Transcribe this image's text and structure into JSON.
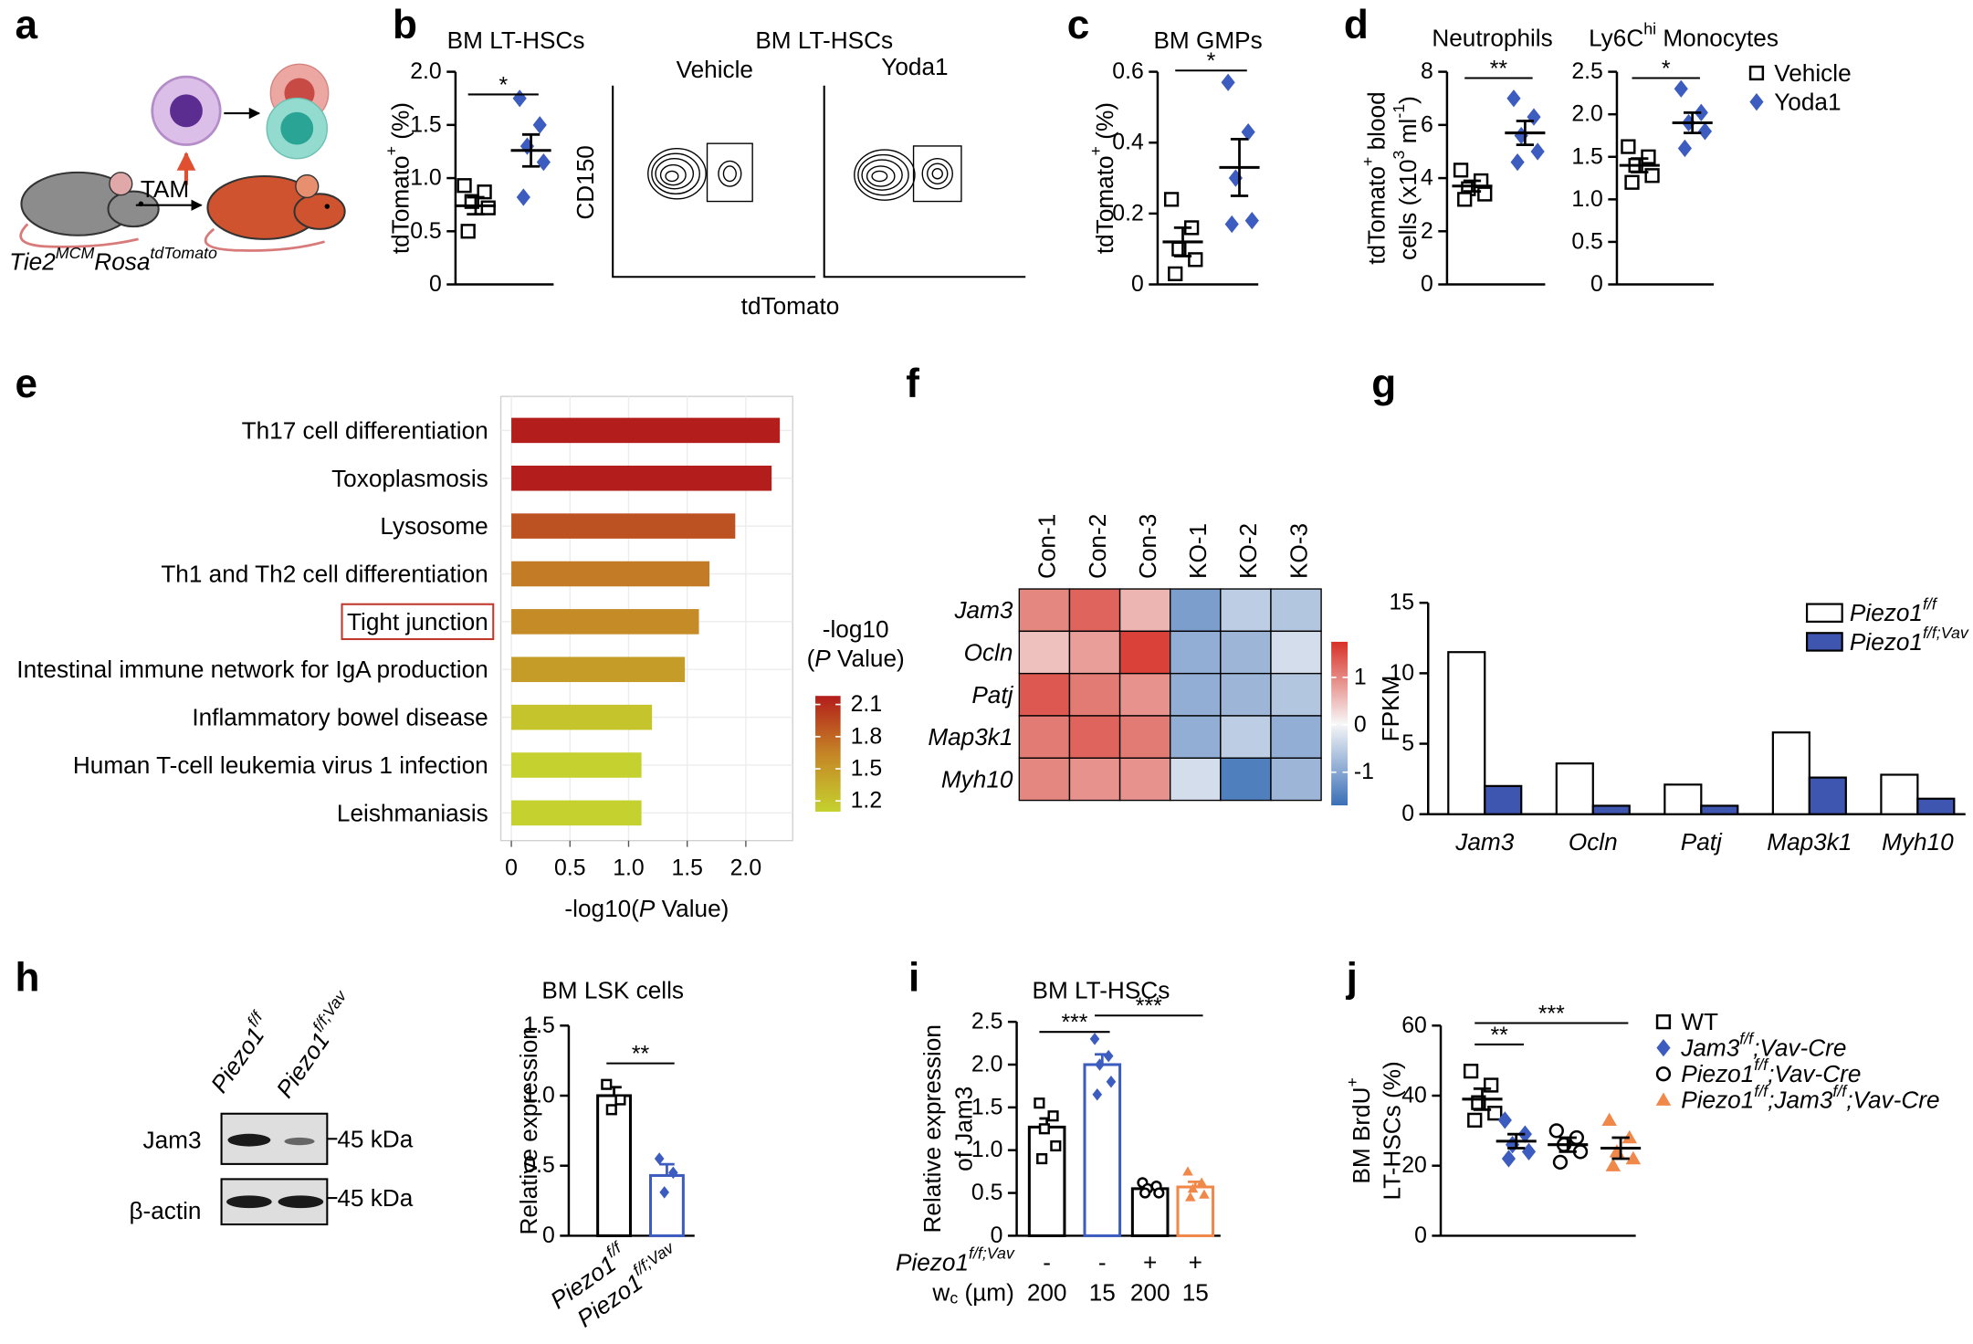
{
  "panel_labels": [
    "a",
    "b",
    "c",
    "d",
    "e",
    "f",
    "g",
    "h",
    "i",
    "j"
  ],
  "schematic": {
    "treatment": "TAM",
    "genotype": [
      "Tie2",
      {
        "sup": "MCM"
      },
      "Rosa",
      {
        "sup": "tdTomato"
      }
    ]
  },
  "flow": {
    "title": "BM LT-HSCs",
    "conditions": [
      "Vehicle",
      "Yoda1"
    ],
    "ylabel": "CD150",
    "xlabel": "tdTomato"
  },
  "blot": {
    "lanes": [
      [
        "Piezo1",
        {
          "sup": "f/f"
        }
      ],
      [
        "Piezo1",
        {
          "sup": "f/f;Vav"
        }
      ]
    ],
    "proteins": [
      "Jam3",
      "β-actin"
    ],
    "markers": [
      "45 kDa",
      "45 kDa"
    ]
  },
  "chart_data": [
    {
      "type": "dot",
      "title": "BM LT-HSCs",
      "ylabel": [
        [
          "tdTomato",
          {
            "sup": "+"
          },
          " (%)"
        ]
      ],
      "ylim": [
        0,
        2
      ],
      "yticks": [
        0,
        0.5,
        {
          "value": 1,
          "label": "1.0"
        },
        1.5,
        {
          "value": 2,
          "label": "2.0"
        }
      ],
      "series": [
        {
          "color": "#000000",
          "marker": "square",
          "values": [
            0.93,
            0.87,
            0.78,
            0.72,
            0.5
          ],
          "mean": 0.74,
          "sem": 0.08
        },
        {
          "color": "#3d5cbf",
          "marker": "diamond",
          "values": [
            1.75,
            1.5,
            1.3,
            1.15,
            0.82
          ],
          "mean": 1.26,
          "sem": 0.15
        }
      ],
      "annotations": [
        {
          "text": "*",
          "from": 0,
          "to": 1
        }
      ]
    },
    {
      "type": "dot",
      "title": "BM GMPs",
      "ylabel": [
        [
          "tdTomato",
          {
            "sup": "+"
          },
          " (%)"
        ]
      ],
      "ylim": [
        0,
        0.6
      ],
      "yticks": [
        0,
        0.2,
        0.4,
        0.6
      ],
      "series": [
        {
          "color": "#000000",
          "marker": "square",
          "values": [
            0.24,
            0.16,
            0.1,
            0.07,
            0.03
          ],
          "mean": 0.12,
          "sem": 0.04
        },
        {
          "color": "#3d5cbf",
          "marker": "diamond",
          "values": [
            0.57,
            0.43,
            0.3,
            0.18,
            0.17
          ],
          "mean": 0.33,
          "sem": 0.08
        }
      ],
      "annotations": [
        {
          "text": "*",
          "from": 0,
          "to": 1
        }
      ]
    },
    {
      "type": "dot",
      "title": "Neutrophils",
      "ylabel": [
        [
          "tdTomato",
          {
            "sup": "+"
          },
          " blood"
        ],
        [
          "cells (x10",
          {
            "sup": "3"
          },
          " ml",
          {
            "sup": "-1"
          },
          ")"
        ]
      ],
      "ylim": [
        0,
        8
      ],
      "yticks": [
        0,
        2,
        4,
        6,
        8
      ],
      "series": [
        {
          "color": "#000000",
          "marker": "square",
          "values": [
            4.3,
            3.9,
            3.6,
            3.4,
            3.2
          ],
          "mean": 3.7,
          "sem": 0.2
        },
        {
          "color": "#3d5cbf",
          "marker": "diamond",
          "values": [
            7.0,
            6.3,
            5.6,
            5.0,
            4.6
          ],
          "mean": 5.7,
          "sem": 0.45
        }
      ],
      "annotations": [
        {
          "text": "**",
          "from": 0,
          "to": 1
        }
      ]
    },
    {
      "type": "dot",
      "title": [
        "Ly6C",
        {
          "sup": "hi"
        },
        " Monocytes"
      ],
      "ylabel": [],
      "ylim": [
        0,
        2.5
      ],
      "yticks": [
        0,
        0.5,
        {
          "value": 1,
          "label": "1.0"
        },
        1.5,
        {
          "value": 2,
          "label": "2.0"
        },
        2.5
      ],
      "series": [
        {
          "name": "Vehicle",
          "color": "#000000",
          "marker": "square",
          "values": [
            1.62,
            1.5,
            1.4,
            1.28,
            1.2
          ],
          "mean": 1.4,
          "sem": 0.08
        },
        {
          "name": "Yoda1",
          "color": "#3d5cbf",
          "marker": "diamond",
          "values": [
            2.3,
            2.02,
            1.9,
            1.8,
            1.6
          ],
          "mean": 1.9,
          "sem": 0.12
        }
      ],
      "annotations": [
        {
          "text": "*",
          "from": 0,
          "to": 1
        }
      ]
    },
    {
      "type": "barh",
      "categories": [
        "Th17 cell differentiation",
        "Toxoplasmosis",
        "Lysosome",
        "Th1 and Th2 cell differentiation",
        "Tight junction",
        "Intestinal immune network for IgA production",
        "Inflammatory bowel disease",
        "Human T-cell leukemia virus 1 infection",
        "Leishmaniasis"
      ],
      "values": [
        2.29,
        2.22,
        1.91,
        1.69,
        1.6,
        1.48,
        1.2,
        1.11,
        1.11
      ],
      "xlim": [
        -0.09,
        2.4
      ],
      "xticks": [
        0,
        0.5,
        {
          "value": 1,
          "label": "1.0"
        },
        1.5,
        {
          "value": 2,
          "label": "2.0"
        }
      ],
      "xlabel": [
        "-log10(",
        {
          "i": "P"
        },
        " Value)"
      ],
      "grid": true,
      "colorbar": {
        "title": [
          [
            "-log10"
          ],
          [
            "(",
            {
              "i": "P"
            },
            " Value)"
          ]
        ],
        "lim": [
          1.1,
          2.18
        ],
        "ticks": [
          2.1,
          1.8,
          1.5,
          1.2
        ],
        "colors": [
          "#c5d22e",
          "#c58526",
          "#b31d1b"
        ]
      }
    },
    {
      "type": "heatmap",
      "columns": [
        "Con-1",
        "Con-2",
        "Con-3",
        "KO-1",
        "KO-2",
        "KO-3"
      ],
      "rows": [
        "Jam3",
        "Ocln",
        "Patj",
        "Map3k1",
        "Myh10"
      ],
      "values": [
        [
          1.0,
          1.3,
          0.6,
          -1.1,
          -0.5,
          -0.6
        ],
        [
          0.5,
          0.8,
          1.6,
          -0.9,
          -0.8,
          -0.3
        ],
        [
          1.4,
          1.1,
          0.9,
          -0.9,
          -0.8,
          -0.6
        ],
        [
          1.1,
          1.3,
          1.1,
          -0.9,
          -0.5,
          -0.9
        ],
        [
          1.0,
          0.9,
          0.9,
          -0.3,
          -1.5,
          -0.8
        ]
      ],
      "colorbar": {
        "lim": [
          -1.7,
          1.75
        ],
        "ticks": [
          1,
          0,
          -1
        ],
        "colors": [
          "#3a6fb7",
          "#f7f7f7",
          "#d73027"
        ]
      }
    },
    {
      "type": "grouped_bar",
      "categories": [
        "Jam3",
        "Ocln",
        "Patj",
        "Map3k1",
        "Myh10"
      ],
      "ylabel": [
        [
          "FPKM"
        ]
      ],
      "ylim": [
        0,
        15
      ],
      "yticks": [
        0,
        5,
        10,
        15
      ],
      "series": [
        {
          "name": [
            "Piezo1",
            {
              "sup": "f/f"
            }
          ],
          "color": "#ffffff",
          "values": [
            11.5,
            3.6,
            2.1,
            5.8,
            2.8
          ]
        },
        {
          "name": [
            "Piezo1",
            {
              "sup": "f/f;Vav"
            }
          ],
          "color": "#3f56b0",
          "values": [
            2.0,
            0.6,
            0.6,
            2.6,
            1.1
          ]
        }
      ]
    },
    {
      "type": "bar",
      "title": "BM LSK cells",
      "ylabel": [
        [
          "Relative expression"
        ]
      ],
      "categories": [
        [
          "Piezo1",
          {
            "sup": "f/f"
          }
        ],
        [
          "Piezo1",
          {
            "sup": "f/f;Vav"
          }
        ]
      ],
      "values": [
        1.0,
        0.43
      ],
      "errors": [
        0.06,
        0.08
      ],
      "points": [
        [
          1.08,
          0.97,
          0.9
        ],
        [
          0.55,
          0.45,
          0.31
        ]
      ],
      "colors": [
        "#000000",
        "#3d5cbf"
      ],
      "markers": [
        "square",
        "diamond"
      ],
      "ylim": [
        0,
        1.5
      ],
      "yticks": [
        0,
        0.5,
        {
          "value": 1,
          "label": "1.0"
        },
        1.5
      ],
      "annotations": [
        {
          "text": "**",
          "from": 0,
          "to": 1
        }
      ]
    },
    {
      "type": "bar",
      "title": "BM LT-HSCs",
      "ylabel": [
        [
          "Relative expression"
        ],
        [
          "of Jam3"
        ]
      ],
      "values": [
        1.27,
        2.0,
        0.55,
        0.57
      ],
      "errors": [
        0.1,
        0.12,
        0.04,
        0.06
      ],
      "points": [
        [
          1.55,
          1.4,
          1.25,
          1.05,
          0.9
        ],
        [
          2.3,
          2.1,
          2.0,
          1.8,
          1.65
        ],
        [
          0.62,
          0.58,
          0.55,
          0.5,
          0.5
        ],
        [
          0.75,
          0.62,
          0.55,
          0.48,
          0.45
        ]
      ],
      "colors": [
        "#000000",
        "#3d5cbf",
        "#000000",
        "#f0884a"
      ],
      "markers": [
        "square",
        "diamond",
        "circle",
        "triangle"
      ],
      "ylim": [
        0,
        2.5
      ],
      "yticks": [
        0,
        0.5,
        {
          "value": 1,
          "label": "1.0"
        },
        1.5,
        {
          "value": 2,
          "label": "2.0"
        },
        2.5
      ],
      "rows": [
        {
          "label": [
            "Piezo1",
            {
              "sup": "f/f;Vav"
            }
          ],
          "values": [
            "-",
            "-",
            "+",
            "+"
          ]
        },
        {
          "label": [
            "w",
            {
              "sub": "c"
            },
            " (µm)"
          ],
          "values": [
            "200",
            "15",
            "200",
            "15"
          ]
        }
      ],
      "annotations": [
        {
          "text": "***",
          "from": 0,
          "to": 1
        },
        {
          "text": "***",
          "from": 1,
          "to": 3
        }
      ]
    },
    {
      "type": "dot",
      "ylabel": [
        [
          "BM BrdU",
          {
            "sup": "+"
          }
        ],
        [
          "LT-HSCs (%)"
        ]
      ],
      "ylim": [
        0,
        60
      ],
      "yticks": [
        0,
        20,
        40,
        60
      ],
      "series": [
        {
          "name": "WT",
          "color": "#000000",
          "marker": "square",
          "values": [
            47,
            43,
            38,
            35,
            33
          ],
          "mean": 39,
          "sem": 3
        },
        {
          "name": [
            "Jam3",
            {
              "sup": "f/f"
            },
            ";Vav-Cre"
          ],
          "color": "#3d5cbf",
          "marker": "diamond",
          "values": [
            33,
            29,
            26,
            24,
            22
          ],
          "mean": 27,
          "sem": 2
        },
        {
          "name": [
            "Piezo1",
            {
              "sup": "f/f"
            },
            ";Vav-Cre"
          ],
          "color": "#000000",
          "marker": "circle",
          "values": [
            30,
            28,
            26,
            24,
            21
          ],
          "mean": 26,
          "sem": 2
        },
        {
          "name": [
            "Piezo1",
            {
              "sup": "f/f"
            },
            ";Jam3",
            {
              "sup": "f/f"
            },
            ";Vav-Cre"
          ],
          "color": "#f0884a",
          "marker": "triangle",
          "values": [
            33,
            28,
            24,
            22,
            20
          ],
          "mean": 25,
          "sem": 3
        }
      ],
      "annotations": [
        {
          "text": "**",
          "from": 0,
          "to": 1
        },
        {
          "text": "***",
          "from": 0,
          "to": 3
        }
      ]
    }
  ]
}
